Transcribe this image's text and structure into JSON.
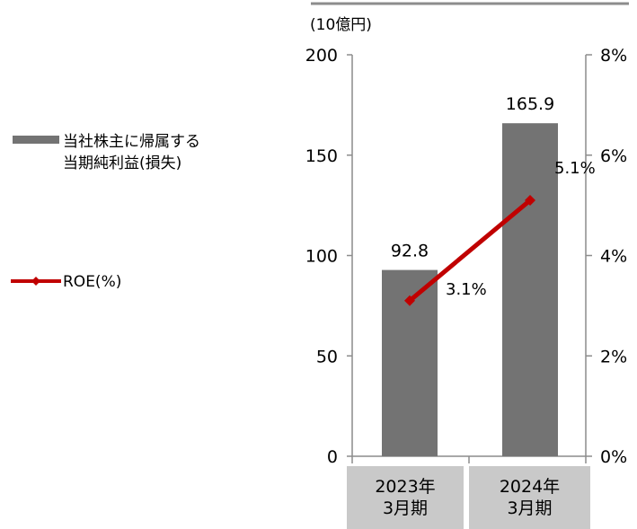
{
  "unit_label": "(10億円)",
  "legend": {
    "bar_label_line1": "当社株主に帰属する",
    "bar_label_line2": "当期純利益(損失)",
    "line_label": "ROE(%)"
  },
  "categories": [
    {
      "line1": "2023年",
      "line2": "3月期"
    },
    {
      "line1": "2024年",
      "line2": "3月期"
    }
  ],
  "colors": {
    "bar": "#737373",
    "line": "#c00000",
    "category_box": "#c9c9c9",
    "axis": "#8c8c8c"
  },
  "chart_data": {
    "type": "bar",
    "categories": [
      "2023年3月期",
      "2024年3月期"
    ],
    "series": [
      {
        "name": "当社株主に帰属する当期純利益(損失)",
        "type": "bar",
        "axis": "left",
        "values": [
          92.8,
          165.9
        ],
        "labels": [
          "92.8",
          "165.9"
        ]
      },
      {
        "name": "ROE(%)",
        "type": "line",
        "axis": "right",
        "values": [
          3.1,
          5.1
        ],
        "labels": [
          "3.1%",
          "5.1%"
        ]
      }
    ],
    "y_left": {
      "min": 0,
      "max": 200,
      "ticks": [
        0,
        50,
        100,
        150,
        200
      ],
      "tick_labels": [
        "0",
        "50",
        "100",
        "150",
        "200"
      ]
    },
    "y_right": {
      "min": 0,
      "max": 8,
      "ticks": [
        0,
        2,
        4,
        6,
        8
      ],
      "tick_labels": [
        "0%",
        "2%",
        "4%",
        "6%",
        "8%"
      ]
    },
    "legend_position": "left",
    "grid": false
  }
}
